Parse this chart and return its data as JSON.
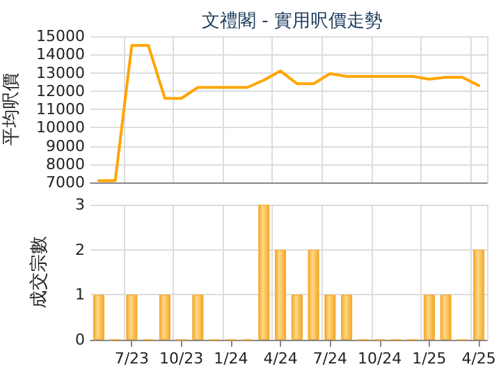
{
  "chart_data": [
    {
      "type": "line",
      "title": "文禮閣 - 實用呎價走勢",
      "ylabel": "平均呎價",
      "categories": [
        null,
        null,
        null,
        null,
        null,
        null,
        null,
        null,
        null,
        null,
        null,
        null,
        null,
        null,
        null,
        null,
        null,
        null,
        null,
        null,
        null,
        null,
        null,
        null
      ],
      "series": [
        {
          "color": "#ffa500",
          "line_style": "solid",
          "values": [
            7100,
            7100,
            14500,
            14500,
            11600,
            11600,
            12200,
            12200,
            12200,
            12200,
            12600,
            13100,
            12400,
            12400,
            12950,
            12800,
            12800,
            12800,
            12800,
            12800,
            12650,
            12750,
            12750,
            12300
          ]
        }
      ],
      "ylim": [
        7000,
        15000
      ],
      "yticks": [
        7000,
        8000,
        9000,
        10000,
        11000,
        12000,
        13000,
        14000,
        15000
      ],
      "grid": true,
      "tick_labels": "y",
      "marker": "none"
    },
    {
      "type": "bar",
      "ylabel": "成交宗數",
      "categories": [
        null,
        null,
        "7/23",
        null,
        null,
        "10/23",
        null,
        null,
        "1/24",
        null,
        null,
        "4/24",
        null,
        null,
        "7/24",
        null,
        null,
        "10/24",
        null,
        null,
        "1/25",
        null,
        null,
        "4/25"
      ],
      "values": [
        1,
        0,
        1,
        0,
        1,
        0,
        1,
        0,
        0,
        0,
        3,
        2,
        1,
        2,
        1,
        1,
        0,
        0,
        0,
        0,
        1,
        1,
        0,
        2
      ],
      "color": "#f5a623",
      "ylim": [
        0,
        3
      ],
      "yticks": [
        0,
        1,
        2,
        3
      ],
      "grid": true
    }
  ]
}
